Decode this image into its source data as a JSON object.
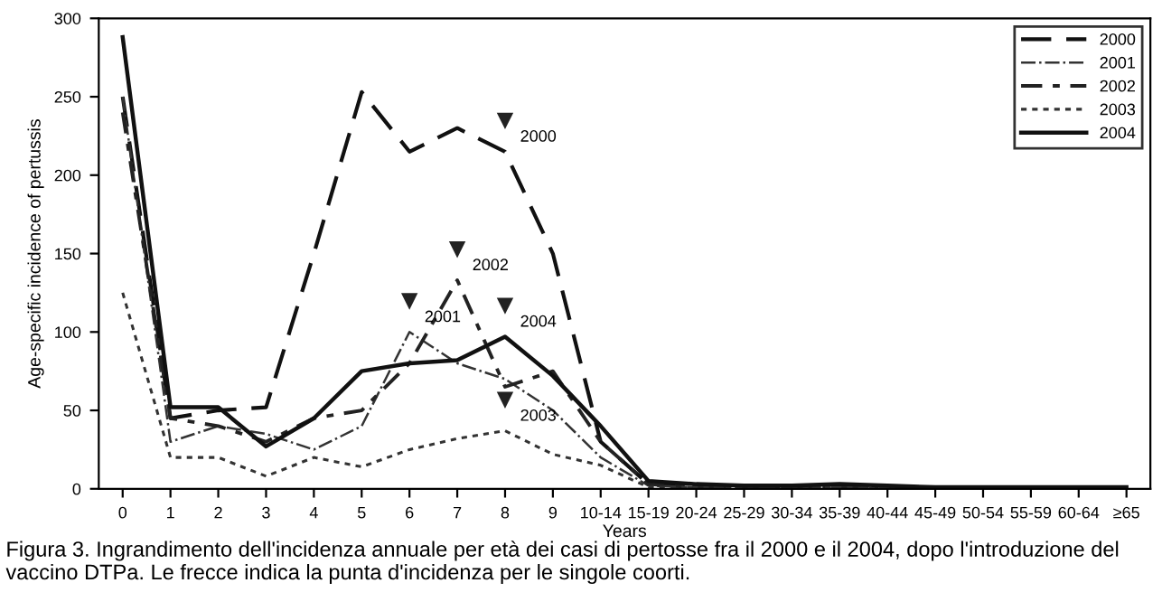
{
  "chart_data": {
    "type": "line",
    "xlabel": "Years",
    "ylabel": "Age-specific incidence of pertussis",
    "categories": [
      "0",
      "1",
      "2",
      "3",
      "4",
      "5",
      "6",
      "7",
      "8",
      "9",
      "10-14",
      "15-19",
      "20-24",
      "25-29",
      "30-34",
      "35-39",
      "40-44",
      "45-49",
      "50-54",
      "55-59",
      "60-64",
      "≥65"
    ],
    "ylim": [
      0,
      300
    ],
    "yticks": [
      0,
      50,
      100,
      150,
      200,
      250,
      300
    ],
    "grid": false,
    "legend": "top right",
    "marker": "none",
    "series": [
      {
        "name": "2000",
        "color": "#111111",
        "line_style": "dashed",
        "values": [
          250,
          45,
          50,
          52,
          150,
          253,
          215,
          230,
          215,
          150,
          30,
          3,
          1,
          1,
          1,
          1,
          1,
          1,
          0,
          0,
          0,
          0
        ]
      },
      {
        "name": "2001",
        "color": "#333333",
        "line_style": "dashdot",
        "values": [
          250,
          30,
          40,
          35,
          25,
          40,
          100,
          80,
          70,
          50,
          20,
          2,
          1,
          1,
          1,
          1,
          1,
          0,
          0,
          0,
          0,
          0
        ]
      },
      {
        "name": "2002",
        "color": "#222222",
        "line_style": "dashdotheavy",
        "values": [
          240,
          45,
          40,
          30,
          45,
          50,
          80,
          133,
          65,
          75,
          30,
          3,
          1,
          1,
          1,
          1,
          1,
          1,
          0,
          0,
          0,
          0
        ]
      },
      {
        "name": "2003",
        "color": "#333333",
        "line_style": "dotted",
        "values": [
          125,
          20,
          20,
          8,
          20,
          14,
          25,
          32,
          37,
          22,
          15,
          1,
          1,
          1,
          1,
          1,
          0,
          0,
          0,
          0,
          0,
          0
        ]
      },
      {
        "name": "2004",
        "color": "#111111",
        "line_style": "solid",
        "values": [
          288,
          52,
          52,
          27,
          45,
          75,
          80,
          82,
          97,
          72,
          40,
          5,
          3,
          2,
          2,
          3,
          2,
          1,
          1,
          1,
          1,
          1
        ]
      }
    ],
    "annotations": [
      {
        "text": "2000",
        "x": "8",
        "y": 215
      },
      {
        "text": "2001",
        "x": "6",
        "y": 100
      },
      {
        "text": "2002",
        "x": "7",
        "y": 133
      },
      {
        "text": "2003",
        "x": "8",
        "y": 37
      },
      {
        "text": "2004",
        "x": "8",
        "y": 97
      },
      "Figura 3. Ingrandimento dell'incidenza annuale per età dei casi di pertosse fra il 2000 e il 2004, dopo l'introduzione del vaccino DTPa. Le frecce indica la punta d'incidenza per le singole coorti."
    ]
  }
}
